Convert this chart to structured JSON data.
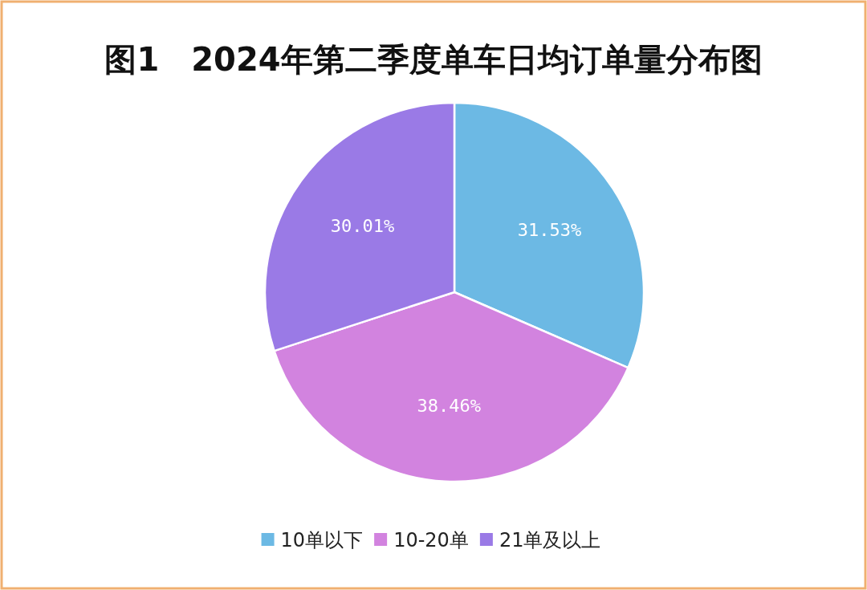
{
  "chart_data": {
    "type": "pie",
    "title": "图1　2024年第二季度单车日均订单量分布图",
    "categories": [
      "10单以下",
      "10-20单",
      "21单及以上"
    ],
    "values": [
      31.53,
      38.46,
      30.01
    ],
    "colors": [
      "#6cb9e4",
      "#d283df",
      "#9a7ae6"
    ],
    "value_labels": [
      "31.53%",
      "38.46%",
      "30.01%"
    ],
    "legend": "bottom"
  }
}
